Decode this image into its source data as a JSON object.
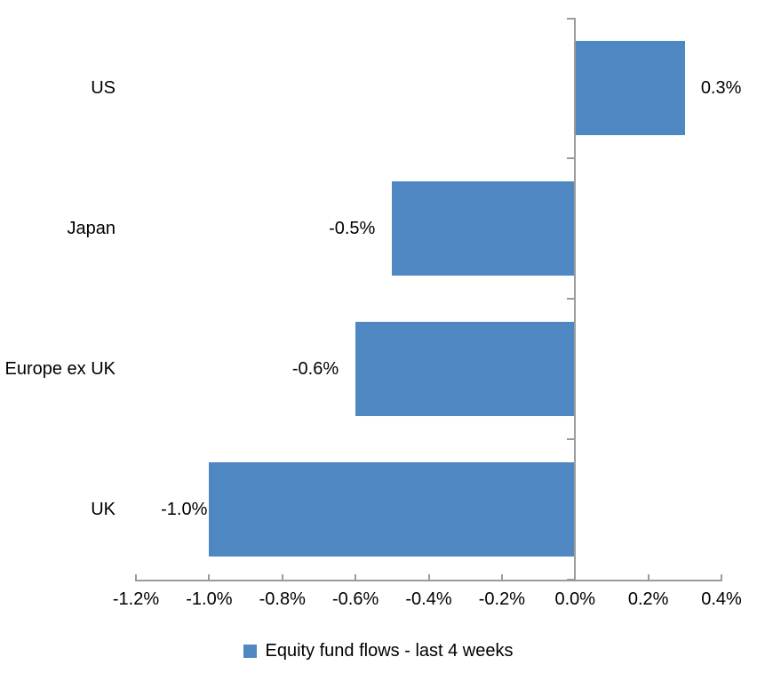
{
  "chart_data": {
    "type": "bar",
    "orientation": "horizontal",
    "title": "",
    "xlabel": "",
    "ylabel": "",
    "categories": [
      "US",
      "Japan",
      "Europe ex UK",
      "UK"
    ],
    "values": [
      0.3,
      -0.5,
      -0.6,
      -1.0
    ],
    "data_labels": [
      "0.3%",
      "-0.5%",
      "-0.6%",
      "-1.0%"
    ],
    "xlim": [
      -1.2,
      0.4
    ],
    "x_tick_step": 0.2,
    "x_tick_labels": [
      "-1.2%",
      "-1.0%",
      "-0.8%",
      "-0.6%",
      "-0.4%",
      "-0.2%",
      "0.0%",
      "0.2%",
      "0.4%"
    ],
    "grid": false,
    "legend": {
      "position": "bottom-center",
      "entries": [
        {
          "label": "Equity fund flows - last 4 weeks",
          "swatch": "blue-square"
        }
      ]
    },
    "colors": {
      "bar": "#4E87C1",
      "axis": "#9B9B9B",
      "text": "#000000",
      "background": "#FFFFFF"
    }
  }
}
